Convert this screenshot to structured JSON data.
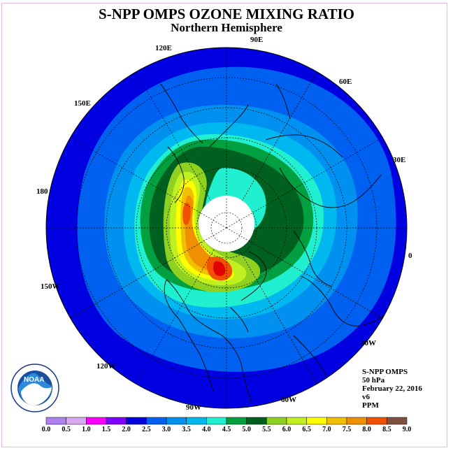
{
  "header": {
    "title": "S-NPP OMPS OZONE MIXING RATIO",
    "subtitle": "Northern Hemisphere"
  },
  "longitude_labels": [
    "90E",
    "60E",
    "30E",
    "0",
    "30W",
    "60W",
    "90W",
    "120W",
    "150W",
    "180",
    "150E",
    "120E"
  ],
  "info": {
    "instrument": "S-NPP OMPS",
    "level": "50 hPa",
    "date": "February 22, 2016",
    "version": "v6",
    "units": "PPM"
  },
  "colorbar": {
    "labels": [
      "0.0",
      "0.5",
      "1.0",
      "1.5",
      "2.0",
      "2.5",
      "3.0",
      "3.5",
      "4.0",
      "4.5",
      "5.0",
      "5.5",
      "6.0",
      "6.5",
      "7.0",
      "7.5",
      "8.0",
      "8.5",
      "9.0"
    ],
    "colors": [
      "#b080f0",
      "#d8a8f0",
      "#ff00ff",
      "#8000ff",
      "#0000e0",
      "#0060f0",
      "#0090f0",
      "#00b8f0",
      "#20f0d0",
      "#00a040",
      "#006020",
      "#90d020",
      "#c0f020",
      "#ffff00",
      "#f0c000",
      "#f09000",
      "#f05000",
      "#e00000",
      "#805040"
    ]
  },
  "logo": {
    "text": "NOAA"
  }
}
